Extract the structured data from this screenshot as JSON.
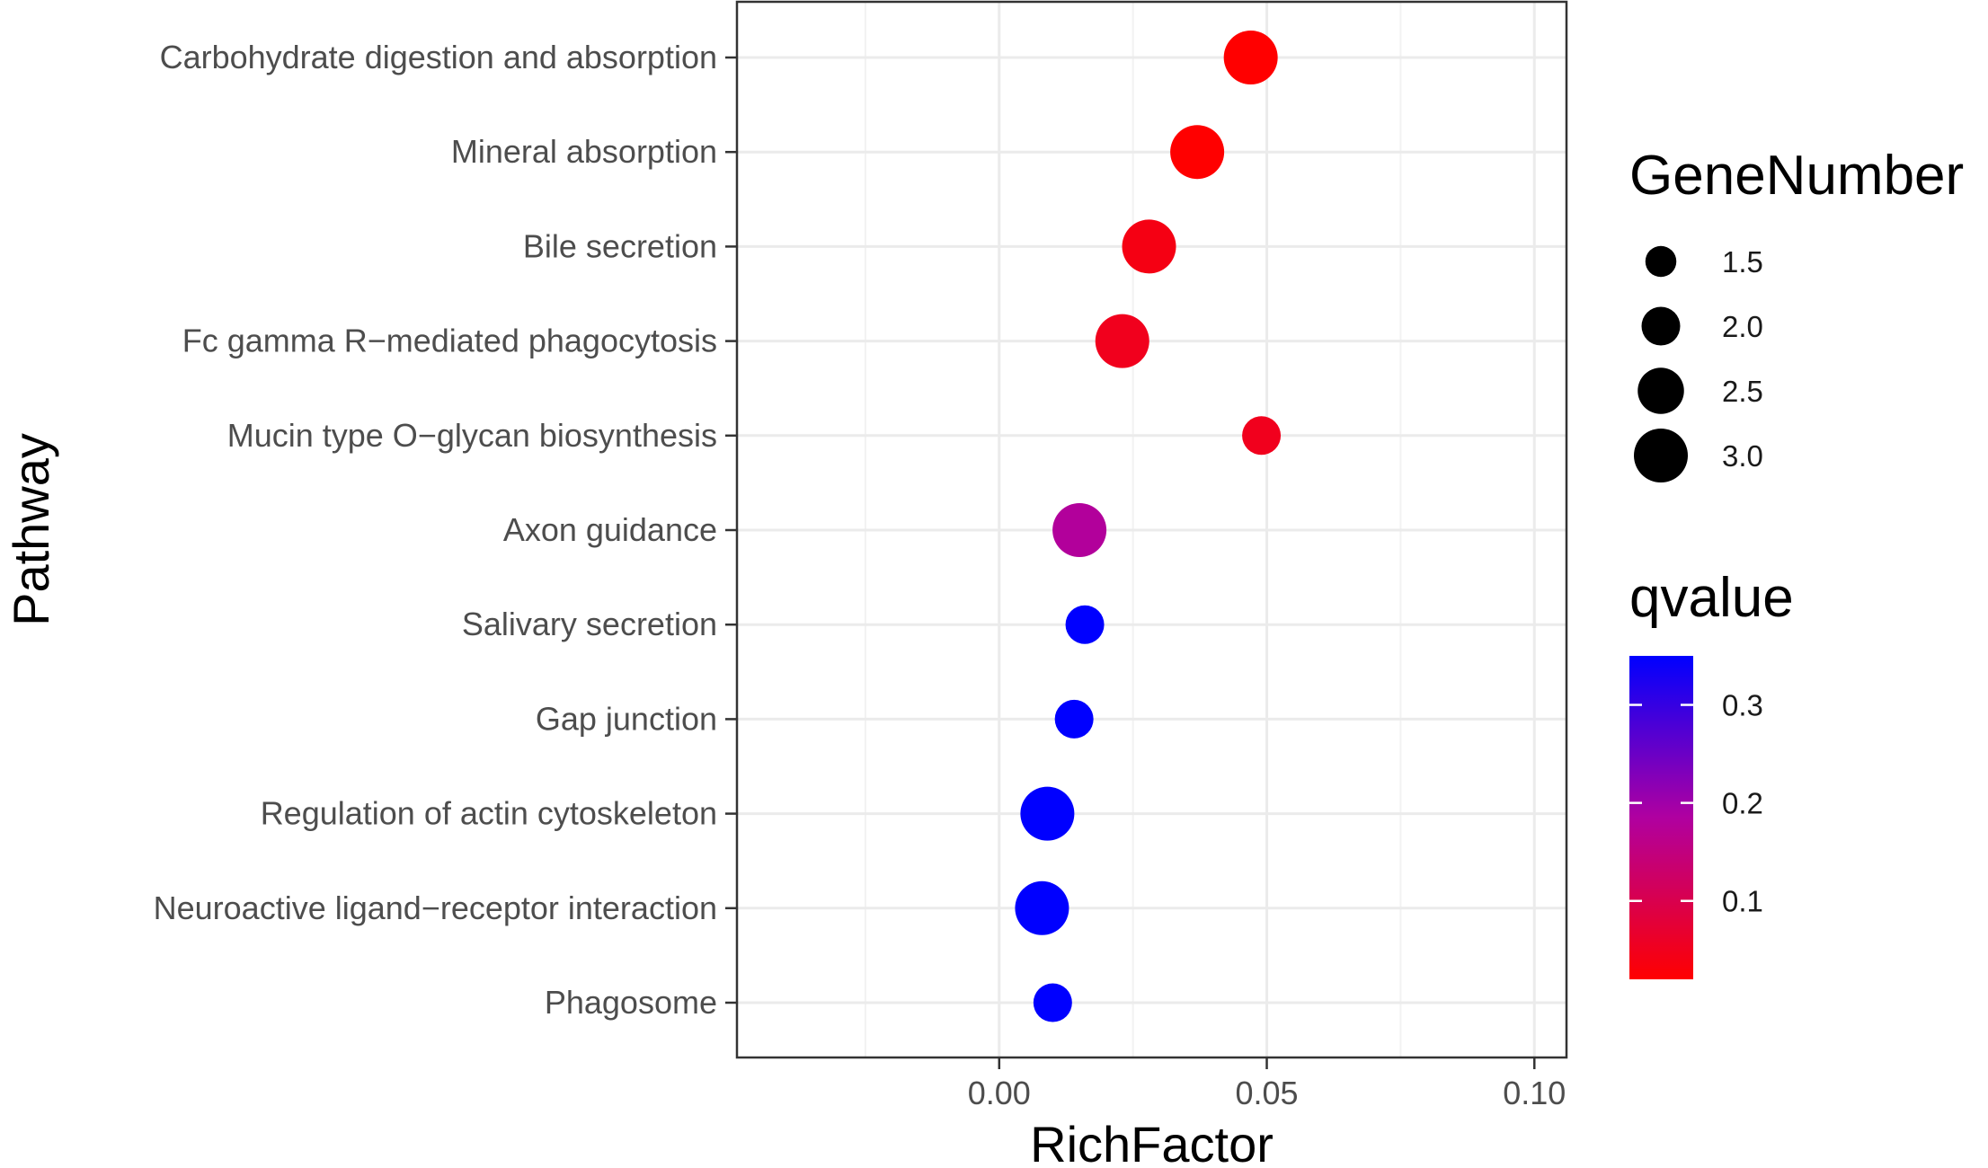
{
  "chart_data": {
    "type": "scatter",
    "xlabel": "RichFactor",
    "ylabel": "Pathway",
    "xlim": [
      -0.049,
      0.106
    ],
    "x_ticks": [
      0.0,
      0.05,
      0.1
    ],
    "x_tick_labels": [
      "0.00",
      "0.05",
      "0.10"
    ],
    "grid": true,
    "categories": [
      "Carbohydrate digestion and absorption",
      "Mineral absorption",
      "Bile secretion",
      "Fc gamma R−mediated phagocytosis",
      "Mucin type O−glycan biosynthesis",
      "Axon guidance",
      "Salivary secretion",
      "Gap junction",
      "Regulation of actin cytoskeleton",
      "Neuroactive ligand−receptor interaction",
      "Phagosome"
    ],
    "points": [
      {
        "pathway": "Carbohydrate digestion and absorption",
        "rich_factor": 0.047,
        "gene_number": 3,
        "qvalue": 0.02
      },
      {
        "pathway": "Mineral absorption",
        "rich_factor": 0.037,
        "gene_number": 3,
        "qvalue": 0.02
      },
      {
        "pathway": "Bile secretion",
        "rich_factor": 0.028,
        "gene_number": 3,
        "qvalue": 0.04
      },
      {
        "pathway": "Fc gamma R−mediated phagocytosis",
        "rich_factor": 0.023,
        "gene_number": 3,
        "qvalue": 0.05
      },
      {
        "pathway": "Mucin type O−glycan biosynthesis",
        "rich_factor": 0.049,
        "gene_number": 2,
        "qvalue": 0.05
      },
      {
        "pathway": "Axon guidance",
        "rich_factor": 0.015,
        "gene_number": 3,
        "qvalue": 0.18
      },
      {
        "pathway": "Salivary secretion",
        "rich_factor": 0.016,
        "gene_number": 2,
        "qvalue": 0.35
      },
      {
        "pathway": "Gap junction",
        "rich_factor": 0.014,
        "gene_number": 2,
        "qvalue": 0.35
      },
      {
        "pathway": "Regulation of actin cytoskeleton",
        "rich_factor": 0.009,
        "gene_number": 3,
        "qvalue": 0.35
      },
      {
        "pathway": "Neuroactive ligand−receptor interaction",
        "rich_factor": 0.008,
        "gene_number": 3,
        "qvalue": 0.35
      },
      {
        "pathway": "Phagosome",
        "rich_factor": 0.01,
        "gene_number": 2,
        "qvalue": 0.35
      }
    ],
    "size_legend": {
      "title": "GeneNumber",
      "values": [
        1.5,
        2.0,
        2.5,
        3.0
      ],
      "labels": [
        "1.5",
        "2.0",
        "2.5",
        "3.0"
      ]
    },
    "color_legend": {
      "title": "qvalue",
      "range": [
        0.02,
        0.35
      ],
      "ticks": [
        0.3,
        0.2,
        0.1
      ],
      "labels": [
        "0.3",
        "0.2",
        "0.1"
      ],
      "low_color": "#ff0000",
      "high_color": "#0000ff",
      "mid_color": "#b000a0"
    },
    "legend_position": "right"
  }
}
